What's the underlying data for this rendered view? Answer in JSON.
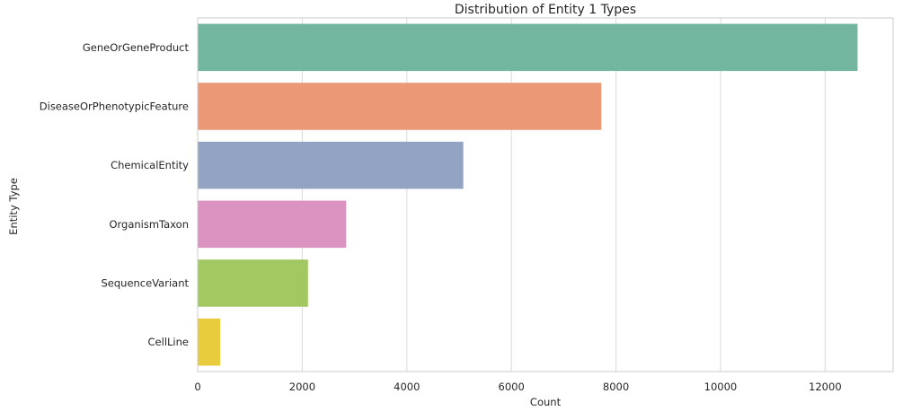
{
  "chart_data": {
    "type": "bar",
    "orientation": "horizontal",
    "title": "Distribution of Entity 1 Types",
    "xlabel": "Count",
    "ylabel": "Entity Type",
    "categories": [
      "GeneOrGeneProduct",
      "DiseaseOrPhenotypicFeature",
      "ChemicalEntity",
      "OrganismTaxon",
      "SequenceVariant",
      "CellLine"
    ],
    "values": [
      12620,
      7720,
      5080,
      2840,
      2110,
      430
    ],
    "colors": [
      "#73b6a0",
      "#ea9875",
      "#93a3c4",
      "#db93c1",
      "#a3c862",
      "#e9cc3d"
    ],
    "xlim": [
      0,
      13300
    ],
    "xticks": [
      0,
      2000,
      4000,
      6000,
      8000,
      10000,
      12000
    ],
    "xtick_labels": [
      "0",
      "2000",
      "4000",
      "6000",
      "8000",
      "10000",
      "12000"
    ],
    "grid": "vertical",
    "legend": "none"
  }
}
